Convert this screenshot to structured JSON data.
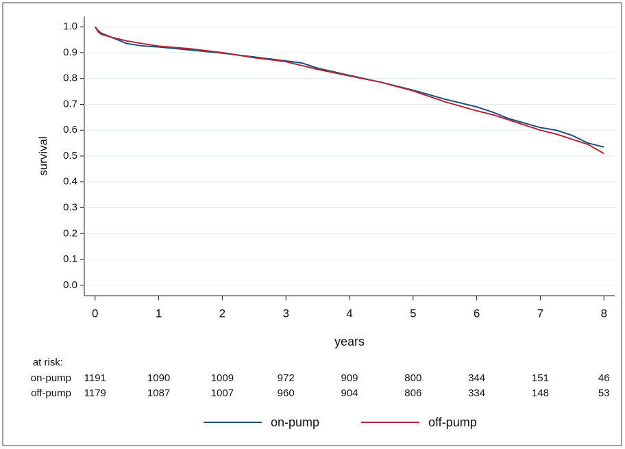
{
  "chart_data": {
    "type": "line",
    "x_label": "years",
    "y_label": "survival",
    "x": [
      0,
      0.05,
      0.1,
      0.25,
      0.5,
      0.75,
      1,
      1.5,
      2,
      2.5,
      3,
      3.25,
      3.5,
      4,
      4.5,
      5,
      5.5,
      6,
      6.25,
      6.5,
      7,
      7.25,
      7.5,
      7.75,
      8
    ],
    "series": [
      {
        "name": "on-pump",
        "color": "#1f4e79",
        "values": [
          1.0,
          0.985,
          0.975,
          0.96,
          0.935,
          0.926,
          0.922,
          0.91,
          0.898,
          0.883,
          0.868,
          0.86,
          0.84,
          0.812,
          0.785,
          0.755,
          0.72,
          0.69,
          0.67,
          0.645,
          0.61,
          0.6,
          0.58,
          0.55,
          0.535
        ],
        "at_risk": [
          1191,
          1090,
          1009,
          972,
          909,
          800,
          344,
          151,
          46
        ]
      },
      {
        "name": "off-pump",
        "color": "#b2263a",
        "values": [
          1.0,
          0.98,
          0.97,
          0.96,
          0.945,
          0.935,
          0.925,
          0.915,
          0.9,
          0.88,
          0.865,
          0.85,
          0.835,
          0.81,
          0.785,
          0.752,
          0.71,
          0.675,
          0.66,
          0.64,
          0.6,
          0.585,
          0.565,
          0.545,
          0.51
        ],
        "at_risk": [
          1179,
          1087,
          1007,
          960,
          904,
          806,
          334,
          148,
          53
        ]
      }
    ],
    "at_risk_label": "at risk:",
    "xlim": [
      -0.17,
      8.17
    ],
    "xticks": [
      0,
      1,
      2,
      3,
      4,
      5,
      6,
      7,
      8
    ],
    "ylim": [
      -0.04,
      1.04
    ],
    "yticks": [
      {
        "value": 0,
        "label": "0.0"
      },
      0.1,
      0.2,
      0.3,
      0.4,
      0.5,
      0.6,
      0.7,
      0.8,
      0.9,
      {
        "value": 1,
        "label": "1.0"
      }
    ],
    "grid": true,
    "legend": "bottom"
  }
}
